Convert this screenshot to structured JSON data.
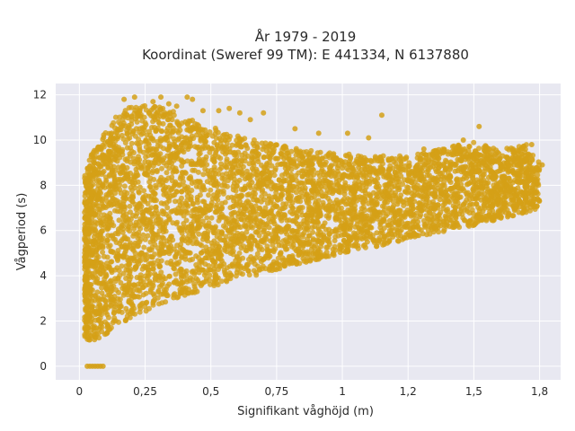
{
  "chart_data": {
    "type": "scatter",
    "title_line1": "År 1979 - 2019",
    "title_line2": "Koordinat (Sweref 99 TM): E 441334, N 6137880",
    "xlabel": "Signifikant våghöjd (m)",
    "ylabel": "Vågperiod (s)",
    "xlim": [
      -0.09,
      1.83
    ],
    "ylim": [
      -0.6,
      12.5
    ],
    "x_ticks": [
      0,
      0.25,
      0.5,
      0.75,
      1,
      1.25,
      1.5,
      1.75
    ],
    "x_tick_labels": [
      "0",
      "0,25",
      "0,5",
      "0,75",
      "1",
      "1,2",
      "1,5",
      "1,8"
    ],
    "y_ticks": [
      0,
      2,
      4,
      6,
      8,
      10,
      12
    ],
    "y_tick_labels": [
      "0",
      "2",
      "4",
      "6",
      "8",
      "10",
      "12"
    ],
    "grid": true,
    "colors": {
      "points": "#D4A017",
      "plot_bg": "#E8E8F1",
      "grid": "#FFFFFF"
    },
    "series": [
      {
        "density_envelope": {
          "x": [
            0.02,
            0.05,
            0.1,
            0.15,
            0.2,
            0.25,
            0.3,
            0.35,
            0.4,
            0.5,
            0.6,
            0.7,
            0.8,
            0.9,
            1.0,
            1.1,
            1.2,
            1.3,
            1.4,
            1.5,
            1.6,
            1.7,
            1.75
          ],
          "y_low": [
            1.2,
            1.1,
            1.4,
            1.8,
            2.1,
            2.4,
            2.7,
            2.9,
            3.1,
            3.5,
            3.8,
            4.1,
            4.4,
            4.7,
            5.0,
            5.2,
            5.5,
            5.7,
            6.0,
            6.2,
            6.5,
            6.8,
            7.0
          ],
          "y_high": [
            8.5,
            9.5,
            10.5,
            11.2,
            11.5,
            11.6,
            11.5,
            11.3,
            11.0,
            10.6,
            10.2,
            9.9,
            9.7,
            9.5,
            9.4,
            9.3,
            9.3,
            9.4,
            9.7,
            9.9,
            9.6,
            9.8,
            9.0
          ]
        },
        "zero_period_points": {
          "x": [
            0.03,
            0.04,
            0.05,
            0.06,
            0.07,
            0.08,
            0.09
          ],
          "y": [
            0,
            0,
            0,
            0,
            0,
            0,
            0
          ]
        },
        "outliers": {
          "x": [
            0.17,
            0.21,
            0.28,
            0.31,
            0.34,
            0.37,
            0.41,
            0.43,
            0.47,
            0.53,
            0.57,
            0.61,
            0.65,
            0.7,
            0.82,
            0.91,
            1.02,
            1.1,
            1.15,
            1.31,
            1.46,
            1.52,
            1.58,
            1.66,
            1.72,
            1.76
          ],
          "y": [
            11.8,
            11.9,
            11.7,
            11.9,
            11.6,
            11.5,
            11.9,
            11.8,
            11.3,
            11.3,
            11.4,
            11.2,
            10.9,
            11.2,
            10.5,
            10.3,
            10.3,
            10.1,
            11.1,
            9.6,
            10.0,
            10.6,
            9.3,
            9.3,
            9.8,
            8.9
          ]
        }
      }
    ]
  }
}
